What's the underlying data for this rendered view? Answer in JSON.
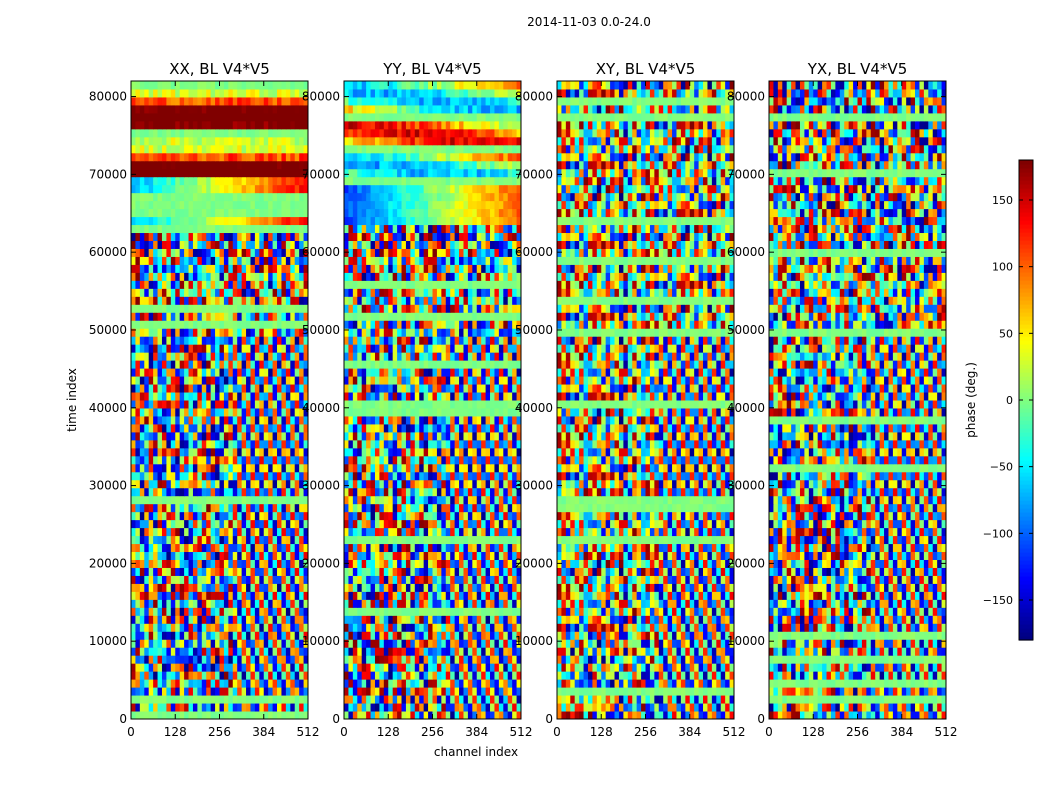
{
  "suptitle": "2014-11-03 0.0-24.0",
  "chart_data": {
    "type": "heatmap",
    "colormap": "jet",
    "panels": [
      {
        "title": "XX, BL V4*V5"
      },
      {
        "title": "YY, BL V4*V5"
      },
      {
        "title": "XY, BL V4*V5"
      },
      {
        "title": "YX, BL V4*V5"
      }
    ],
    "xlabel": "channel index",
    "ylabel": "time index",
    "xlim": [
      0,
      512
    ],
    "ylim": [
      0,
      82000
    ],
    "xticks": [
      0,
      128,
      256,
      384,
      512
    ],
    "yticks": [
      0,
      10000,
      20000,
      30000,
      40000,
      50000,
      60000,
      70000,
      80000
    ],
    "colorbar": {
      "label": "phase (deg.)",
      "range": [
        -180,
        180
      ],
      "ticks": [
        150,
        100,
        50,
        0,
        -50,
        -100,
        -150
      ],
      "tick_labels": [
        "150",
        "100",
        "50",
        "0",
        "−50",
        "−100",
        "−150"
      ]
    }
  }
}
